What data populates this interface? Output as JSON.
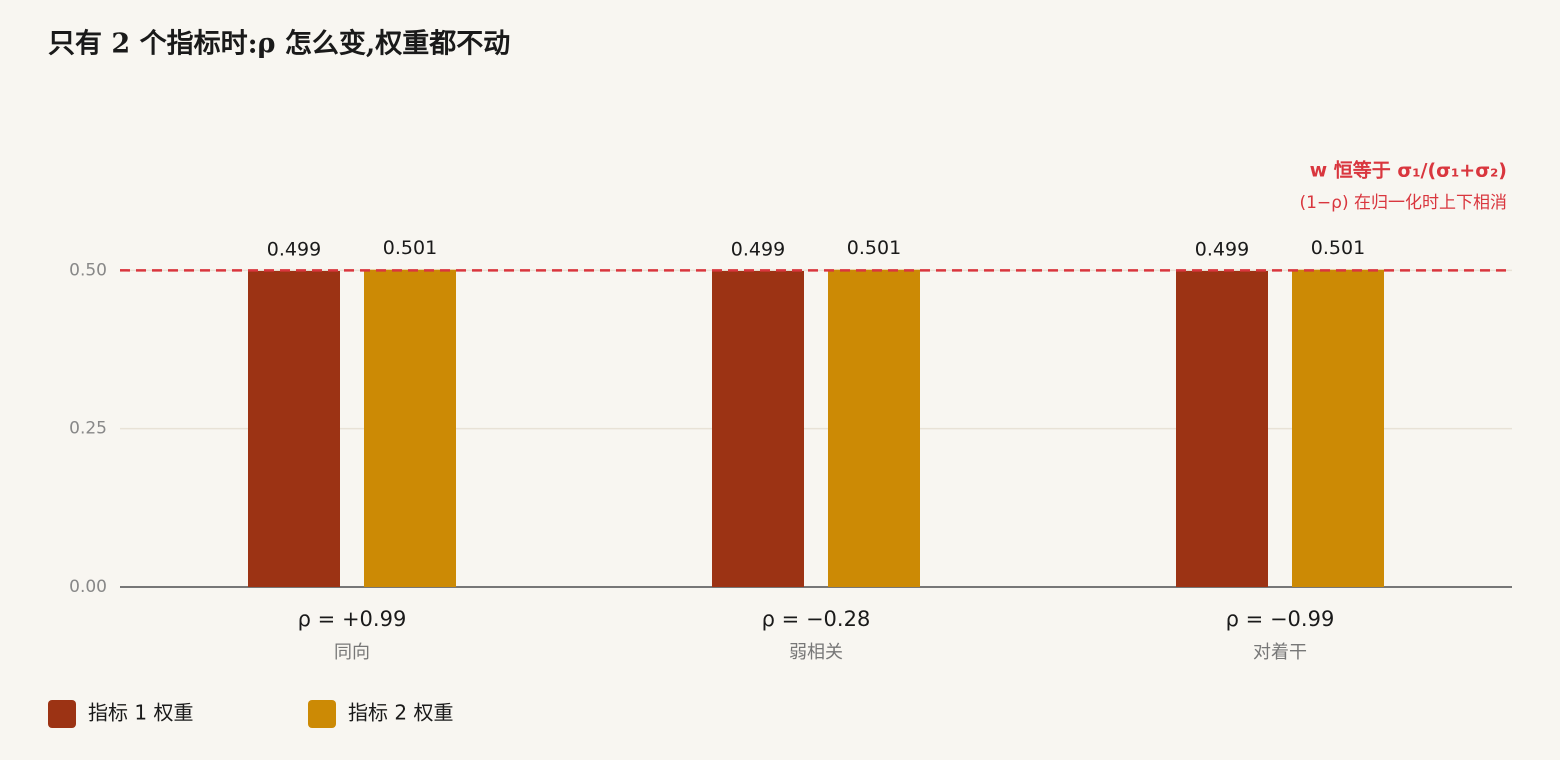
{
  "chart_data": {
    "type": "bar",
    "title": "只有 2 个指标时:ρ 怎么变,权重都不动",
    "categories": [
      "ρ = +0.99",
      "ρ = −0.28",
      "ρ = −0.99"
    ],
    "category_notes": [
      "同向",
      "弱相关",
      "对着干"
    ],
    "series": [
      {
        "name": "指标 1 权重",
        "color": "#9c3314",
        "values": [
          0.499,
          0.499,
          0.499
        ]
      },
      {
        "name": "指标 2 权重",
        "color": "#cc8a05",
        "values": [
          0.501,
          0.501,
          0.501
        ]
      }
    ],
    "ylim": [
      0,
      0.6
    ],
    "yticks": [
      {
        "value": 0,
        "label": "0.00"
      },
      {
        "value": 0.25,
        "label": "0.25"
      },
      {
        "value": 0.5,
        "label": "0.50"
      }
    ],
    "grid": true,
    "reference_line": {
      "value": 0.5,
      "color": "#d9363e"
    },
    "annotations": [
      "w 恒等于 σ₁/(σ₁+σ₂)",
      "(1−ρ) 在归一化时上下相消"
    ],
    "legend": "bottom-left"
  }
}
